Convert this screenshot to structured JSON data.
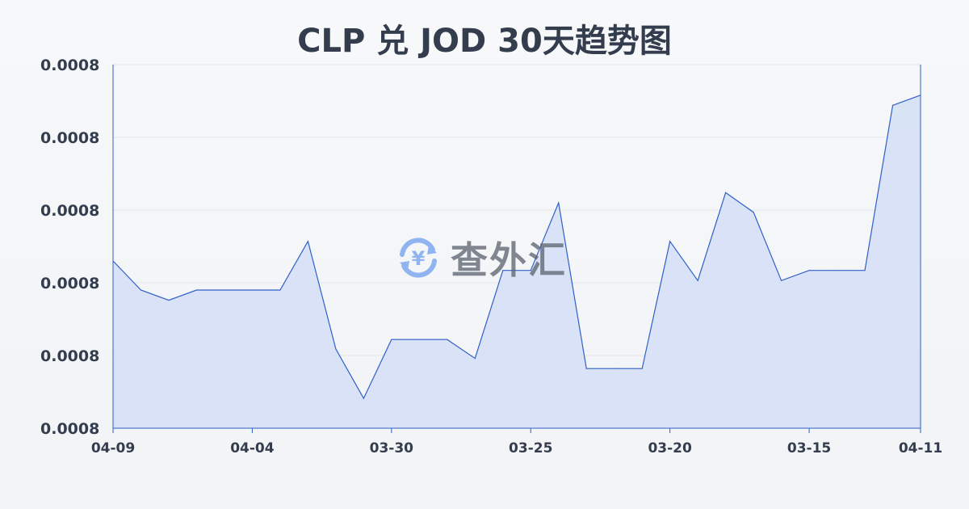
{
  "title": "CLP 兑 JOD 30天趋势图",
  "watermark": {
    "text": "查外汇",
    "icon": "yen-exchange-icon"
  },
  "chart_data": {
    "type": "area",
    "title": "CLP 兑 JOD 30天趋势图",
    "xlabel": "",
    "ylabel": "",
    "ylim": [
      0.00078,
      0.00083
    ],
    "y_ticks": [
      0.00083,
      0.00082,
      0.00081,
      0.0008,
      0.00079,
      0.00078
    ],
    "y_tick_labels": [
      "0.0008",
      "0.0008",
      "0.0008",
      "0.0008",
      "0.0008",
      "0.0008"
    ],
    "x_tick_labels": [
      {
        "index": 0,
        "label": "04-09"
      },
      {
        "index": 5,
        "label": "04-04"
      },
      {
        "index": 10,
        "label": "03-30"
      },
      {
        "index": 15,
        "label": "03-25"
      },
      {
        "index": 20,
        "label": "03-20"
      },
      {
        "index": 25,
        "label": "03-15"
      },
      {
        "index": 29,
        "label": "04-11"
      }
    ],
    "values": [
      0.000803,
      0.000799,
      0.0007976,
      0.000799,
      0.000799,
      0.000799,
      0.000799,
      0.0008057,
      0.0007909,
      0.0007841,
      0.0007922,
      0.0007922,
      0.0007922,
      0.0007896,
      0.0008017,
      0.0008017,
      0.000811,
      0.0007882,
      0.0007882,
      0.0007882,
      0.0008057,
      0.0008003,
      0.0008124,
      0.0008097,
      0.0008003,
      0.0008017,
      0.0008017,
      0.0008017,
      0.0008244,
      0.0008258
    ],
    "grid": true,
    "legend": "none",
    "colors": {
      "line": "#2f5fc8",
      "fill": "#d6e0f5",
      "grid": "#e3e6ea",
      "text": "#343d4d"
    }
  }
}
